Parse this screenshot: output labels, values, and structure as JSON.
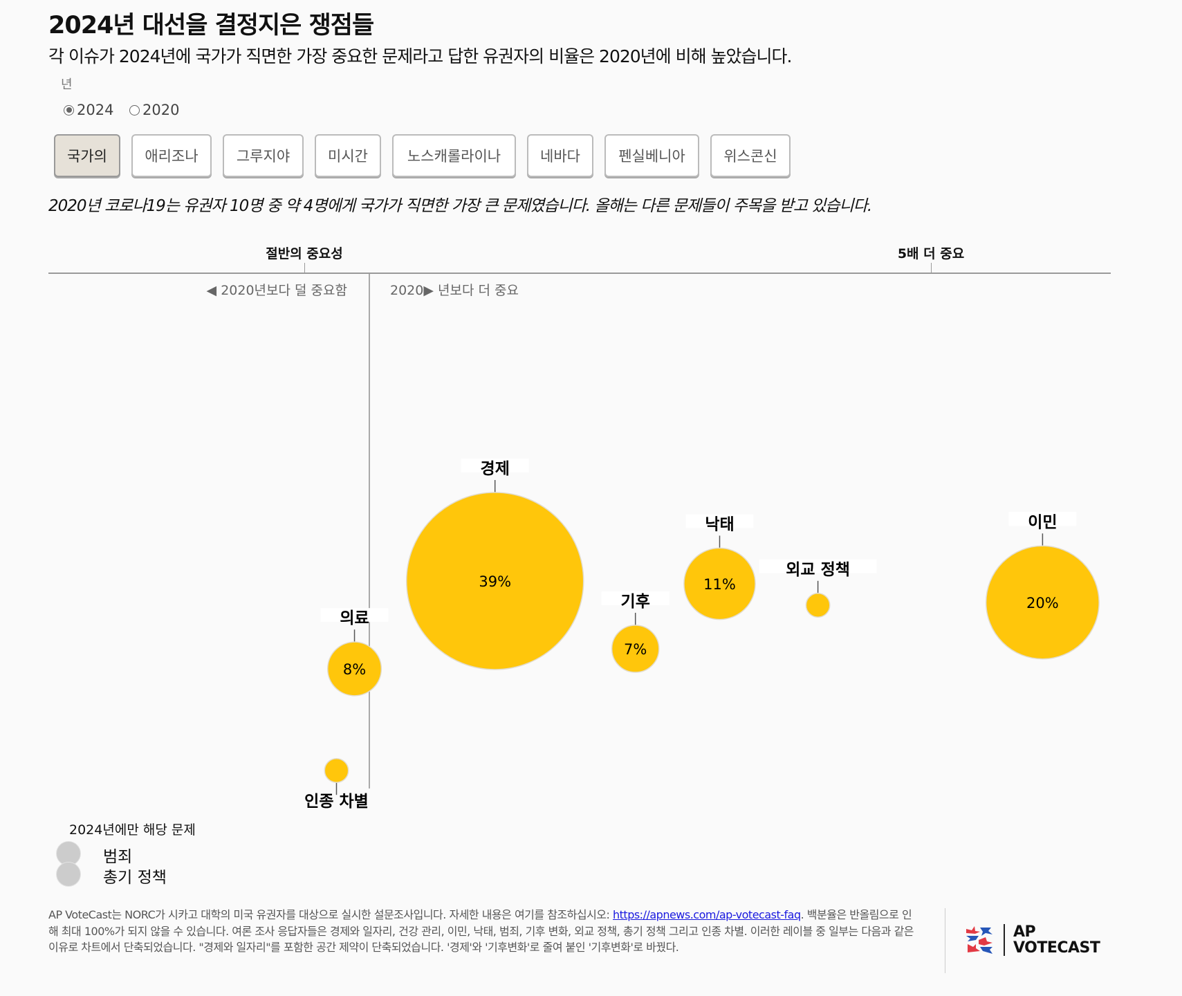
{
  "header": {
    "title": "2024년 대선을 결정지은 쟁점들",
    "subtitle": "각 이슈가 2024년에 국가가 직면한 가장 중요한 문제라고 답한 유권자의 비율은 2020년에 비해 높았습니다."
  },
  "year_selector": {
    "label": "년",
    "options": [
      {
        "label": "2024",
        "selected": true
      },
      {
        "label": "2020",
        "selected": false
      }
    ]
  },
  "tabs": [
    {
      "label": "국가의",
      "active": true
    },
    {
      "label": "애리조나",
      "active": false
    },
    {
      "label": "그루지야",
      "active": false
    },
    {
      "label": "미시간",
      "active": false
    },
    {
      "label": "노스캐롤라이나",
      "active": false
    },
    {
      "label": "네바다",
      "active": false
    },
    {
      "label": "펜실베니아",
      "active": false
    },
    {
      "label": "위스콘신",
      "active": false
    }
  ],
  "note": "2020년 코로나19는 유권자 10명 중 약 4명에게 국가가 직면한 가장 큰 문제였습니다. 올해는 다른 문제들이 주목을 받고 있습니다.",
  "chart_data": {
    "type": "scatter",
    "x_axis": {
      "scale": "ratio 2024 vs 2020",
      "ticks": [
        {
          "value": 0.5,
          "label": "절반의 중요성"
        },
        {
          "value": 5,
          "label": "5배 더 중요"
        }
      ],
      "baseline": 1,
      "less_label": "◀ 2020년보다 덜 중요함",
      "more_label": "2020▶ 년보다 더 중요"
    },
    "bubble_color": "#FFC60B",
    "points": [
      {
        "name": "경제",
        "ratio": 1.9,
        "share": 39,
        "label": "39%",
        "label_pos": "top"
      },
      {
        "name": "의료",
        "ratio": 0.89,
        "share": 8,
        "label": "8%",
        "label_pos": "top"
      },
      {
        "name": "인종 차별",
        "ratio": 0.75,
        "share": 4,
        "label": "",
        "label_pos": "bottom"
      },
      {
        "name": "기후",
        "ratio": 2.9,
        "share": 7,
        "label": "7%",
        "label_pos": "top"
      },
      {
        "name": "낙태",
        "ratio": 3.5,
        "share": 11,
        "label": "11%",
        "label_pos": "top"
      },
      {
        "name": "외교 정책",
        "ratio": 4.2,
        "share": 4,
        "label": "",
        "label_pos": "top"
      },
      {
        "name": "이민",
        "ratio": 5.8,
        "share": 20,
        "label": "20%",
        "label_pos": "top"
      }
    ],
    "legend": {
      "title": "2024년에만 해당 문제",
      "color": "#cccccc",
      "items": [
        "범죄",
        "총기 정책"
      ]
    }
  },
  "footer": {
    "text_before": "AP VoteCast는 NORC가 시카고 대학의 미국 유권자를 대상으로 실시한 설문조사입니다. 자세한 내용은 여기를 참조하십시오: ",
    "link": "https://apnews.com/ap-votecast-faq",
    "text_after": ". 백분율은 반올림으로 인해 최대 100%가 되지 않을 수 있습니다. 여론 조사 응답자들은 경제와 일자리, 건강 관리, 이민, 낙태, 범죄, 기후 변화, 외교 정책, 총기 정책 그리고 인종 차별. 이러한 레이블 중 일부는 다음과 같은 이유로 차트에서 단축되었습니다. \"경제와 일자리\"를 포함한 공간 제약이 단축되었습니다. '경제'와 '기후변화'로 줄여 붙인 '기후변화'로 바꿨다."
  },
  "logo": {
    "line1": "AP",
    "line2": "VOTECAST"
  }
}
